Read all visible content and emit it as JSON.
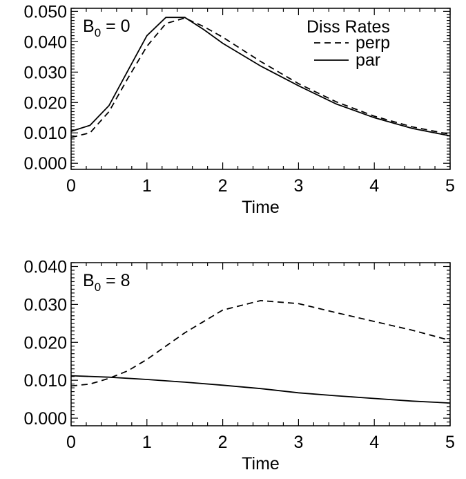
{
  "chart_data": [
    {
      "type": "line",
      "annotation": {
        "base": "B",
        "sub": "0",
        "rest": " = 0"
      },
      "xlabel": "Time",
      "xlim": [
        0,
        5
      ],
      "ylim": [
        -0.002,
        0.051
      ],
      "x_ticks": [
        0,
        1,
        2,
        3,
        4,
        5
      ],
      "y_ticks": [
        0.0,
        0.01,
        0.02,
        0.03,
        0.04,
        0.05
      ],
      "y_tick_labels": [
        "0.000",
        "0.010",
        "0.020",
        "0.030",
        "0.040",
        "0.050"
      ],
      "legend": {
        "title": "Diss Rates",
        "placement": "top-right"
      },
      "series": [
        {
          "name": "perp",
          "dash": "dashed",
          "x": [
            0,
            0.25,
            0.5,
            0.75,
            1.0,
            1.25,
            1.5,
            1.75,
            2.0,
            2.5,
            3.0,
            3.5,
            4.0,
            4.5,
            5.0
          ],
          "y": [
            0.0085,
            0.01,
            0.017,
            0.028,
            0.0385,
            0.046,
            0.0478,
            0.045,
            0.0415,
            0.0335,
            0.0262,
            0.0202,
            0.0155,
            0.012,
            0.0095
          ]
        },
        {
          "name": "par",
          "dash": "solid",
          "x": [
            0,
            0.25,
            0.5,
            0.75,
            1.0,
            1.25,
            1.5,
            1.75,
            2.0,
            2.5,
            3.0,
            3.5,
            4.0,
            4.5,
            5.0
          ],
          "y": [
            0.0105,
            0.0125,
            0.019,
            0.0305,
            0.042,
            0.048,
            0.048,
            0.044,
            0.0395,
            0.032,
            0.0255,
            0.0195,
            0.015,
            0.0115,
            0.009
          ]
        }
      ]
    },
    {
      "type": "line",
      "annotation": {
        "base": "B",
        "sub": "0",
        "rest": " = 8"
      },
      "xlabel": "Time",
      "xlim": [
        0,
        5
      ],
      "ylim": [
        -0.002,
        0.041
      ],
      "x_ticks": [
        0,
        1,
        2,
        3,
        4,
        5
      ],
      "y_ticks": [
        0.0,
        0.01,
        0.02,
        0.03,
        0.04
      ],
      "y_tick_labels": [
        "0.000",
        "0.010",
        "0.020",
        "0.030",
        "0.040"
      ],
      "series": [
        {
          "name": "perp",
          "dash": "dashed",
          "x": [
            0,
            0.25,
            0.5,
            0.75,
            1.0,
            1.5,
            2.0,
            2.5,
            3.0,
            3.5,
            4.0,
            4.5,
            5.0
          ],
          "y": [
            0.0085,
            0.009,
            0.0105,
            0.0125,
            0.0155,
            0.0225,
            0.0285,
            0.031,
            0.0302,
            0.0278,
            0.0255,
            0.0232,
            0.0205
          ]
        },
        {
          "name": "par",
          "dash": "solid",
          "x": [
            0,
            0.5,
            1.0,
            1.5,
            2.0,
            2.5,
            3.0,
            3.5,
            4.0,
            4.5,
            5.0
          ],
          "y": [
            0.0112,
            0.0108,
            0.0102,
            0.0095,
            0.0087,
            0.0078,
            0.0067,
            0.0059,
            0.0052,
            0.0045,
            0.004
          ]
        }
      ]
    }
  ]
}
